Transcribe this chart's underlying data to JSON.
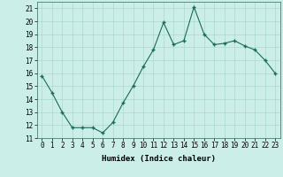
{
  "x": [
    0,
    1,
    2,
    3,
    4,
    5,
    6,
    7,
    8,
    9,
    10,
    11,
    12,
    13,
    14,
    15,
    16,
    17,
    18,
    19,
    20,
    21,
    22,
    23
  ],
  "y": [
    15.8,
    14.5,
    13.0,
    11.8,
    11.8,
    11.8,
    11.4,
    12.2,
    13.7,
    15.0,
    16.5,
    17.8,
    19.9,
    18.2,
    18.5,
    21.1,
    19.0,
    18.2,
    18.3,
    18.5,
    18.1,
    17.8,
    17.0,
    16.0
  ],
  "line_color": "#1a6b5a",
  "marker": "+",
  "marker_size": 3.5,
  "marker_lw": 1.0,
  "bg_color": "#cceee8",
  "grid_color": "#aad8d0",
  "xlabel": "Humidex (Indice chaleur)",
  "xlabel_fontsize": 6.5,
  "tick_fontsize": 5.5,
  "ylim": [
    11,
    21.5
  ],
  "yticks": [
    11,
    12,
    13,
    14,
    15,
    16,
    17,
    18,
    19,
    20,
    21
  ],
  "xlim": [
    -0.5,
    23.5
  ],
  "xticks": [
    0,
    1,
    2,
    3,
    4,
    5,
    6,
    7,
    8,
    9,
    10,
    11,
    12,
    13,
    14,
    15,
    16,
    17,
    18,
    19,
    20,
    21,
    22,
    23
  ]
}
